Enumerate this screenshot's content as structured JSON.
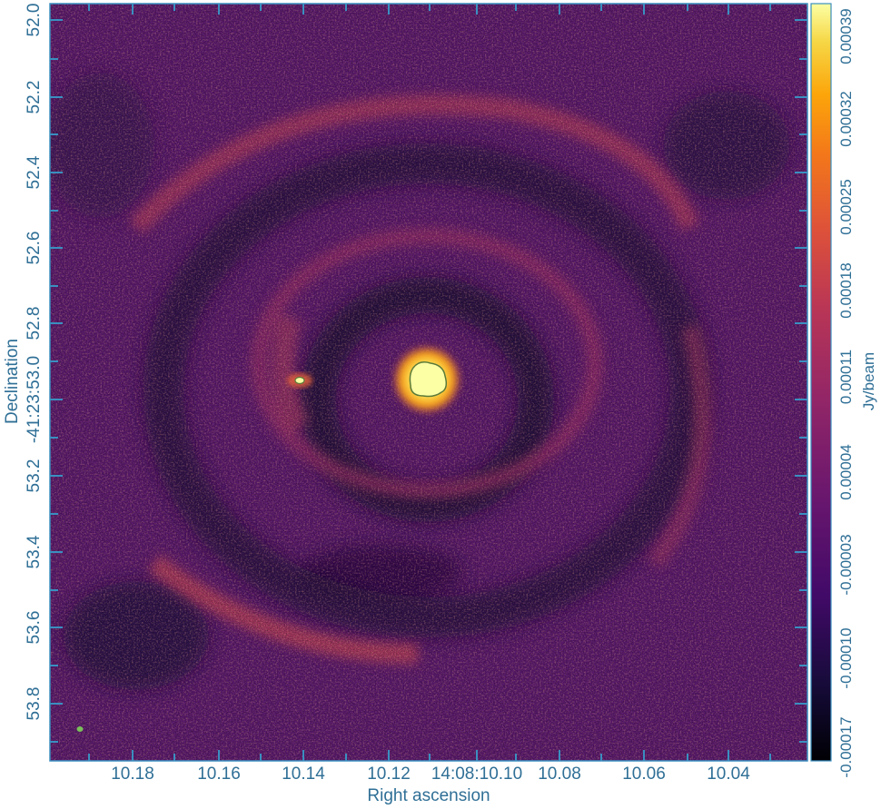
{
  "axes": {
    "xlabel": "Right ascension",
    "ylabel": "Declination",
    "x_ticks": [
      "10.18",
      "10.16",
      "10.14",
      "10.12",
      "14:08:10.10",
      "10.08",
      "10.06",
      "10.04"
    ],
    "y_ticks": [
      "52.0",
      "52.2",
      "52.4",
      "52.6",
      "52.8",
      "-41:23:53.0",
      "53.2",
      "53.4",
      "53.6",
      "53.8"
    ]
  },
  "colorbar": {
    "label": "Jy/beam",
    "ticks": [
      "0.00039",
      "0.00032",
      "0.00025",
      "0.00018",
      "0.00011",
      "0.00004",
      "-0.00003",
      "-0.00010",
      "-0.00017"
    ],
    "min": -0.00017,
    "max": 0.00039,
    "colormap": "inferno"
  },
  "colors": {
    "axis": "#3a8fc0",
    "tick_text": "#2f6f96",
    "contour": "#6aa84f"
  }
}
